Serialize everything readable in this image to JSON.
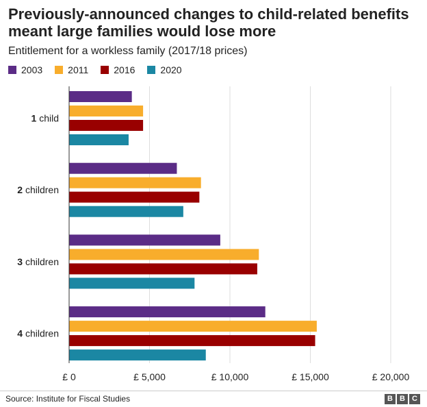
{
  "chart_data": {
    "type": "bar",
    "orientation": "horizontal",
    "title": "Previously-announced changes to child-related benefits meant large families would lose more",
    "subtitle": "Entitlement for a workless family (2017/18 prices)",
    "categories": [
      "1 child",
      "2 children",
      "3 children",
      "4 children"
    ],
    "category_numbers": [
      "1",
      "2",
      "3",
      "4"
    ],
    "category_words": [
      "child",
      "children",
      "children",
      "children"
    ],
    "series": [
      {
        "name": "2003",
        "color": "#5b2c86",
        "values": [
          3900,
          6700,
          9400,
          12200
        ]
      },
      {
        "name": "2011",
        "color": "#f8ad2c",
        "values": [
          4600,
          8200,
          11800,
          15400
        ]
      },
      {
        "name": "2016",
        "color": "#990000",
        "values": [
          4600,
          8100,
          11700,
          15300
        ]
      },
      {
        "name": "2020",
        "color": "#1b87a3",
        "values": [
          3700,
          7100,
          7800,
          8500
        ]
      }
    ],
    "xlim": [
      0,
      20000
    ],
    "x_ticks": [
      0,
      5000,
      10000,
      15000,
      20000
    ],
    "x_tick_labels": [
      "£ 0",
      "£ 5,000",
      "£ 10,000",
      "£ 15,000",
      "£ 20,000"
    ],
    "grid": true,
    "legend_position": "top-left"
  },
  "footer": {
    "source": "Source: Institute for Fiscal Studies",
    "logo_letters": [
      "B",
      "B",
      "C"
    ]
  }
}
